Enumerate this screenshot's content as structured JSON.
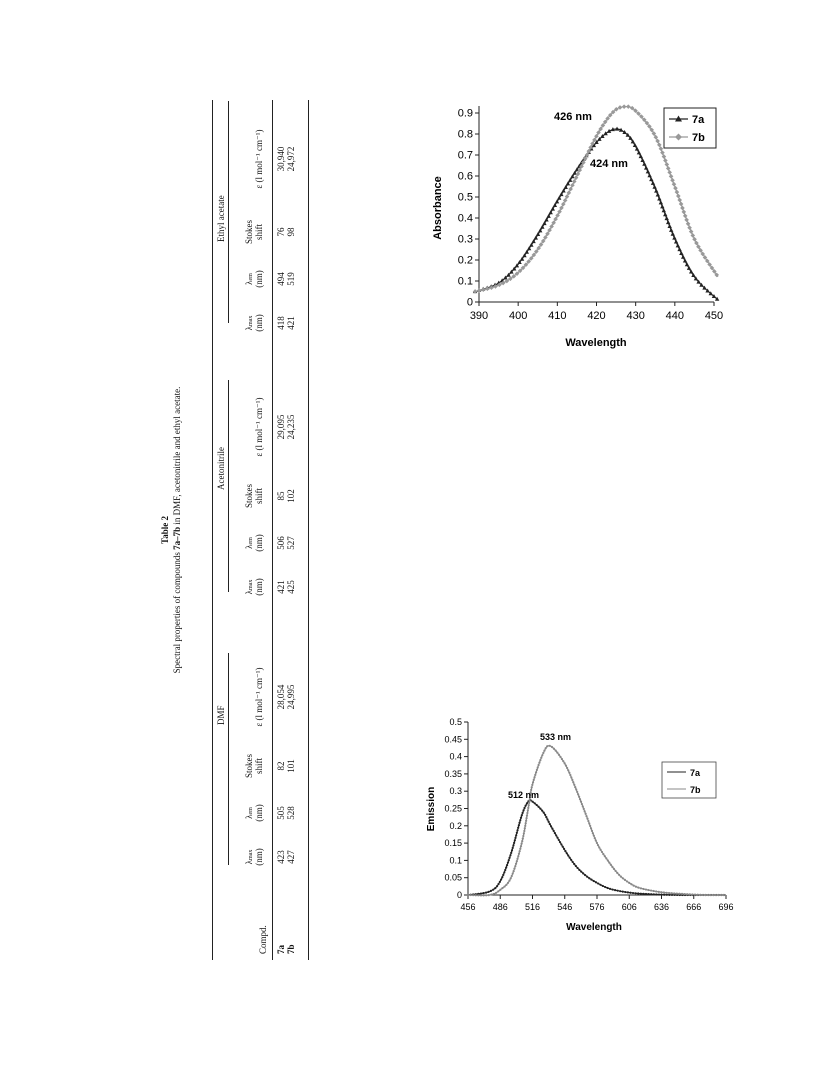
{
  "table": {
    "label": "Table 2",
    "caption_pre": "Spectral properties of compounds ",
    "caption_bold": "7a–7b",
    "caption_post": " in DMF, acetonitrile and ethyl acetate.",
    "compd_header": "Compd.",
    "groups": [
      "DMF",
      "Acetonitrile",
      "Ethyl acetate"
    ],
    "col_headers": {
      "lmax": "λ",
      "lmax_sub": "max",
      "lem": "λ",
      "lem_sub": "em",
      "nm": "(nm)",
      "stokes1": "Stokes",
      "stokes2": "shift",
      "eps": "ε (l mol⁻¹ cm⁻¹)"
    },
    "rows": [
      {
        "compd": "7a",
        "cells": [
          "423",
          "505",
          "82",
          "28,054",
          "421",
          "506",
          "85",
          "29,095",
          "418",
          "494",
          "76",
          "30,940"
        ]
      },
      {
        "compd": "7b",
        "cells": [
          "427",
          "528",
          "101",
          "24,995",
          "425",
          "527",
          "102",
          "24,235",
          "421",
          "519",
          "98",
          "24,972"
        ]
      }
    ]
  },
  "chart_data": [
    {
      "type": "line",
      "xlabel": "Wavelength",
      "ylabel": "Absorbance",
      "xlim": [
        390,
        450
      ],
      "ylim": [
        0,
        0.9
      ],
      "xticks": [
        "390",
        "400",
        "410",
        "420",
        "430",
        "440",
        "450"
      ],
      "yticks": [
        "0",
        "0.1",
        "0.2",
        "0.3",
        "0.4",
        "0.5",
        "0.6",
        "0.7",
        "0.8",
        "0.9"
      ],
      "legend": "top-right",
      "grid": false,
      "annotations": [
        "426 nm",
        "424 nm"
      ],
      "x": [
        389,
        395,
        400,
        405,
        410,
        415,
        420,
        424,
        427,
        430,
        435,
        440,
        445,
        451
      ],
      "series": [
        {
          "name": "7a",
          "color": "#222222",
          "marker": "triangle",
          "values": [
            0.05,
            0.09,
            0.18,
            0.32,
            0.48,
            0.63,
            0.76,
            0.82,
            0.81,
            0.74,
            0.54,
            0.3,
            0.12,
            0.01
          ]
        },
        {
          "name": "7b",
          "color": "#999999",
          "marker": "diamond",
          "values": [
            0.05,
            0.08,
            0.14,
            0.25,
            0.41,
            0.6,
            0.79,
            0.9,
            0.93,
            0.91,
            0.79,
            0.55,
            0.3,
            0.12
          ]
        }
      ]
    },
    {
      "type": "line",
      "xlabel": "Wavelength",
      "ylabel": "Emission",
      "xlim": [
        456,
        696
      ],
      "ylim": [
        0,
        0.5
      ],
      "xticks": [
        "456",
        "486",
        "516",
        "546",
        "576",
        "606",
        "636",
        "666",
        "696"
      ],
      "yticks": [
        "0",
        "0.05",
        "0.1",
        "0.15",
        "0.2",
        "0.25",
        "0.3",
        "0.35",
        "0.4",
        "0.45",
        "0.5"
      ],
      "legend": "right",
      "grid": false,
      "annotations": [
        "533 nm",
        "512 nm"
      ],
      "x": [
        456,
        476,
        486,
        496,
        506,
        512,
        516,
        526,
        533,
        546,
        556,
        566,
        576,
        586,
        596,
        606,
        616,
        636,
        656,
        676,
        696
      ],
      "series": [
        {
          "name": "7a",
          "color": "#222222",
          "marker": "dot",
          "values": [
            0.0,
            0.01,
            0.04,
            0.12,
            0.23,
            0.27,
            0.27,
            0.24,
            0.2,
            0.13,
            0.085,
            0.055,
            0.035,
            0.02,
            0.012,
            0.007,
            0.004,
            0.001,
            0.0,
            0.0,
            0.0
          ]
        },
        {
          "name": "7b",
          "color": "#888888",
          "marker": "dot",
          "values": [
            0.0,
            0.0,
            0.015,
            0.05,
            0.15,
            0.25,
            0.32,
            0.41,
            0.43,
            0.38,
            0.31,
            0.23,
            0.15,
            0.1,
            0.06,
            0.035,
            0.02,
            0.008,
            0.003,
            0.0,
            0.0
          ]
        }
      ]
    }
  ]
}
